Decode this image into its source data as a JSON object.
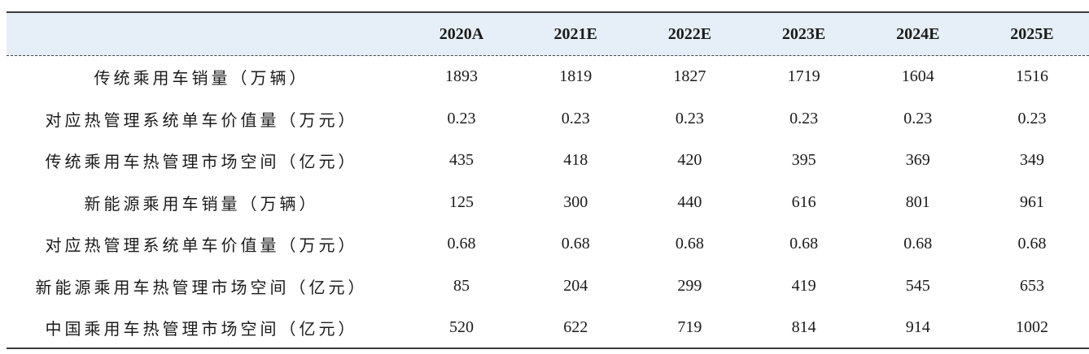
{
  "table": {
    "columns": [
      "",
      "2020A",
      "2021E",
      "2022E",
      "2023E",
      "2024E",
      "2025E"
    ],
    "rows": [
      {
        "label": "传统乘用车销量（万辆）",
        "values": [
          "1893",
          "1819",
          "1827",
          "1719",
          "1604",
          "1516"
        ]
      },
      {
        "label": "对应热管理系统单车价值量（万元）",
        "values": [
          "0.23",
          "0.23",
          "0.23",
          "0.23",
          "0.23",
          "0.23"
        ]
      },
      {
        "label": "传统乘用车热管理市场空间（亿元）",
        "values": [
          "435",
          "418",
          "420",
          "395",
          "369",
          "349"
        ]
      },
      {
        "label": "新能源乘用车销量（万辆）",
        "values": [
          "125",
          "300",
          "440",
          "616",
          "801",
          "961"
        ]
      },
      {
        "label": "对应热管理系统单车价值量（万元）",
        "values": [
          "0.68",
          "0.68",
          "0.68",
          "0.68",
          "0.68",
          "0.68"
        ]
      },
      {
        "label": "新能源乘用车热管理市场空间（亿元）",
        "values": [
          "85",
          "204",
          "299",
          "419",
          "545",
          "653"
        ]
      },
      {
        "label": "中国乘用车热管理市场空间（亿元）",
        "values": [
          "520",
          "622",
          "719",
          "814",
          "914",
          "1002"
        ]
      }
    ]
  },
  "colors": {
    "header_bg": "#e6eff7",
    "rule": "#3a3a3a"
  }
}
